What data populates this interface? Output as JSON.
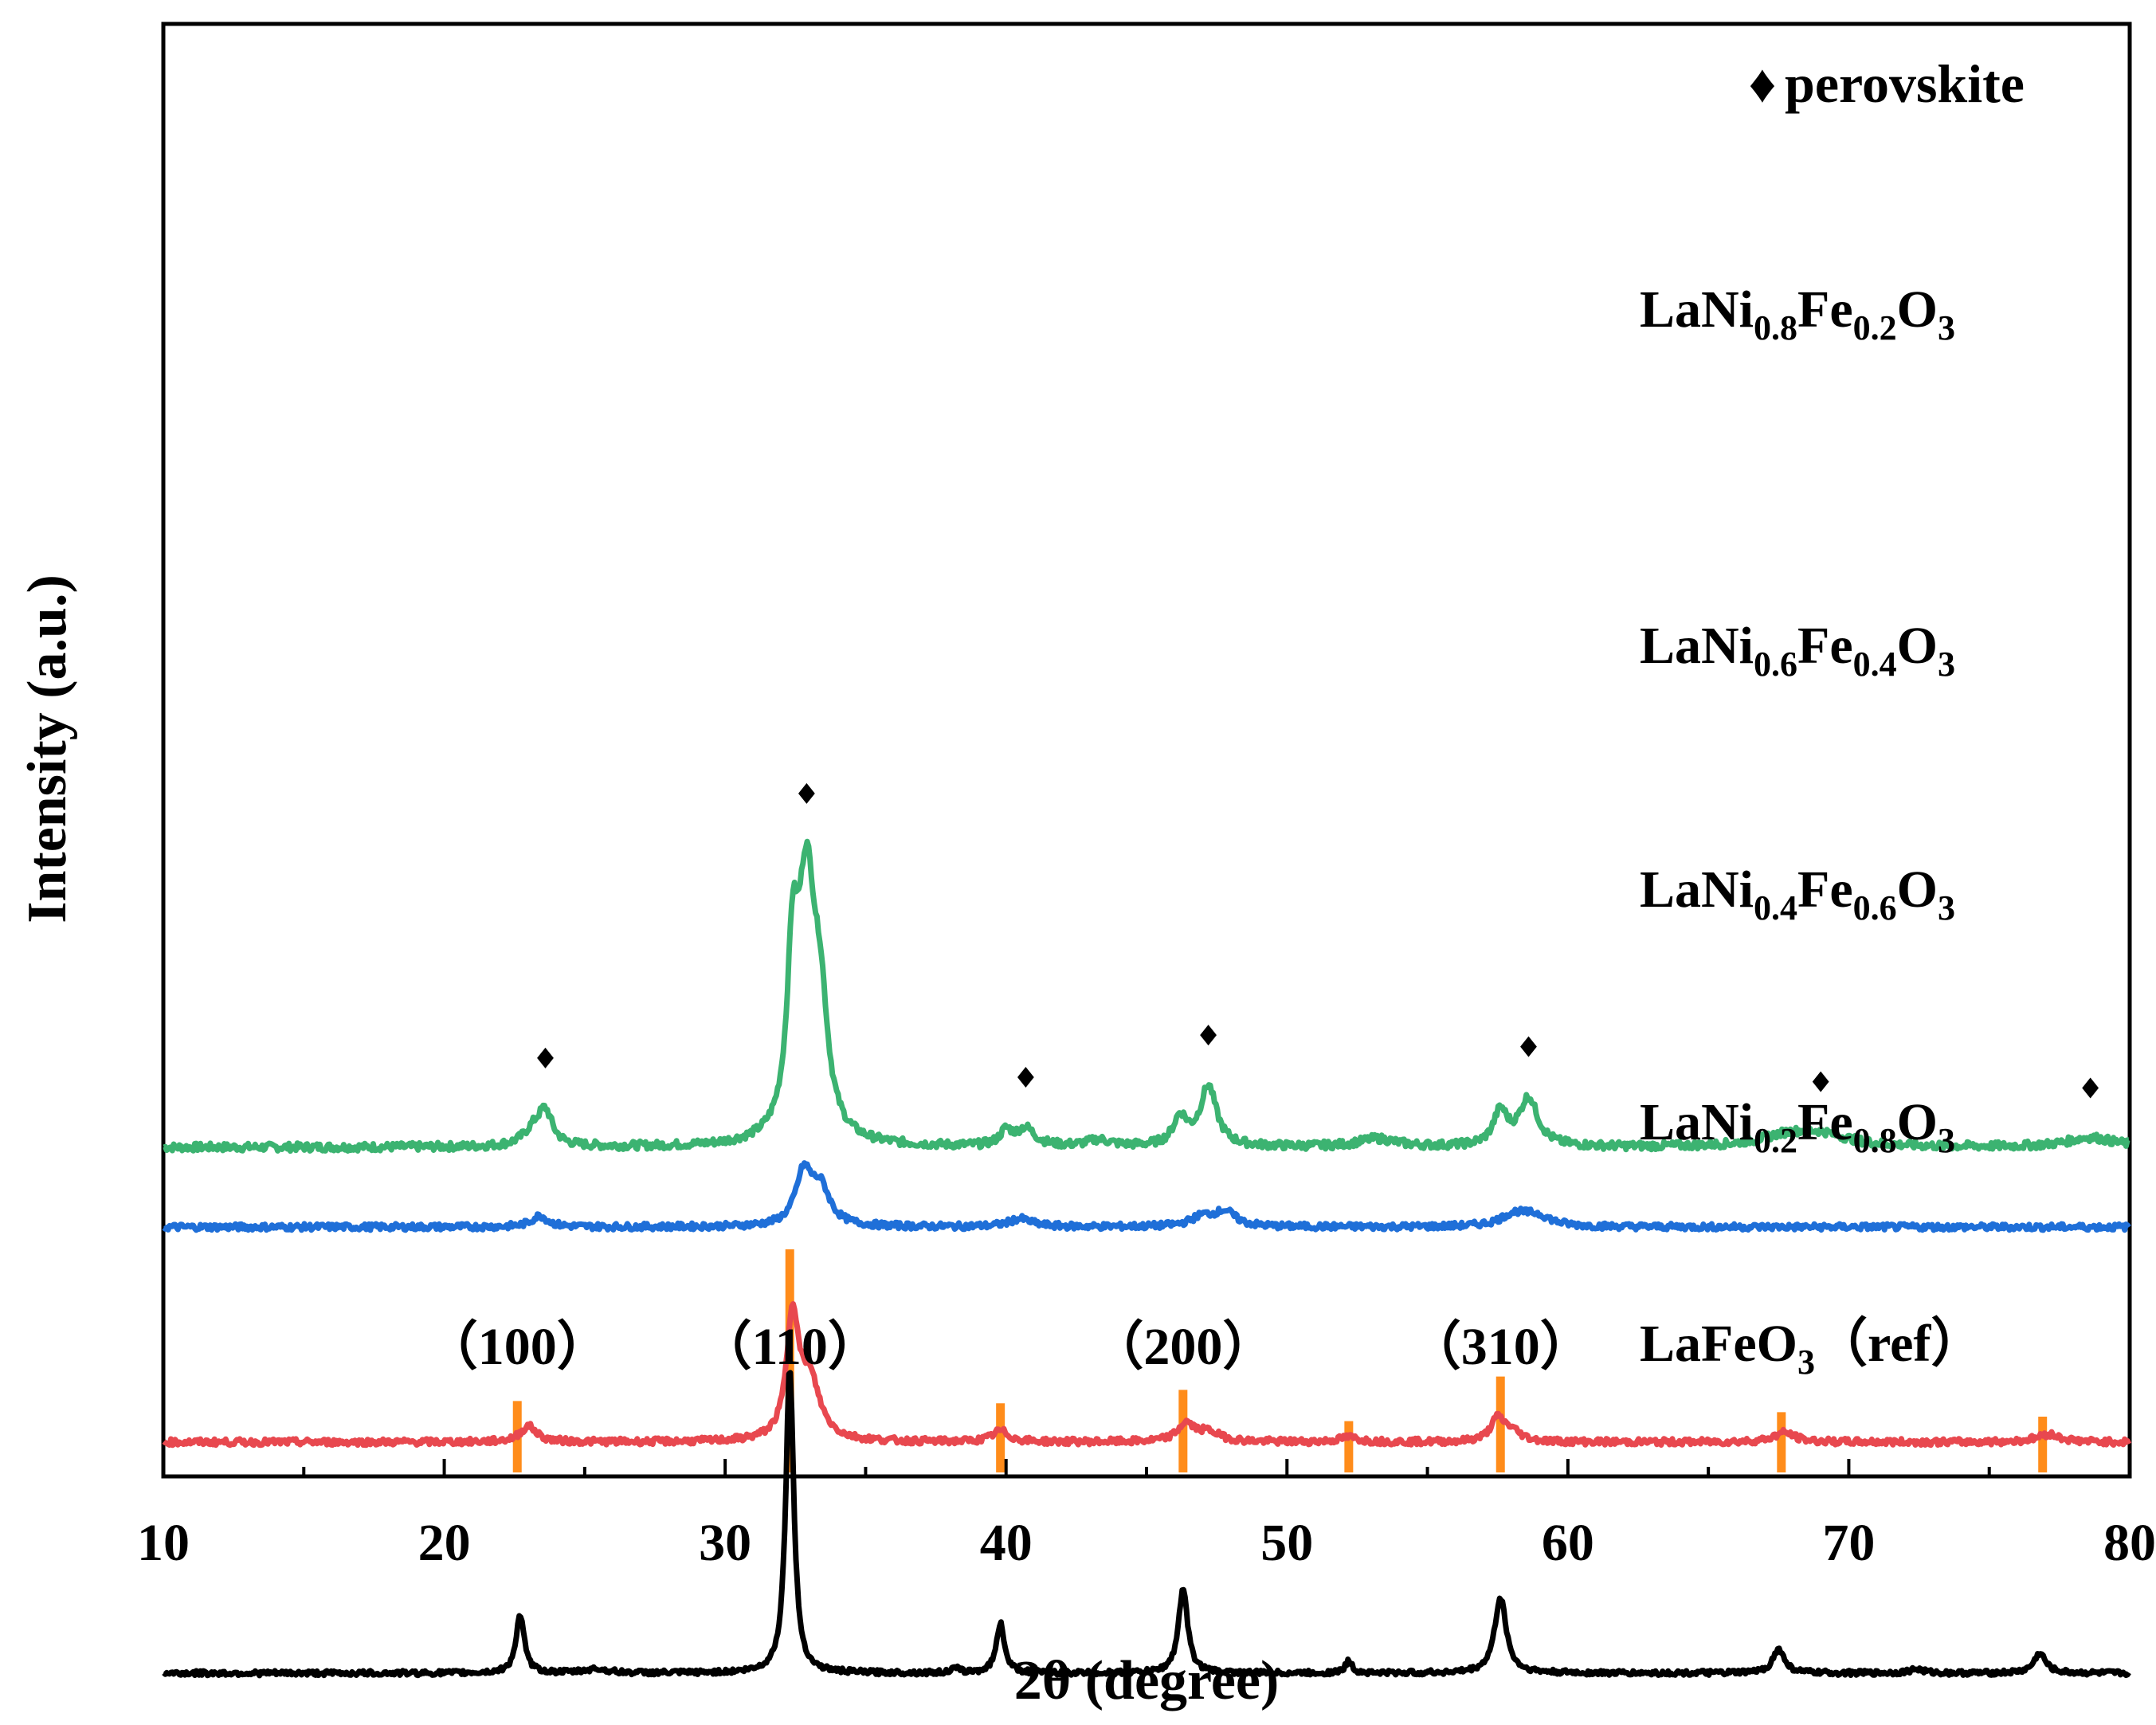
{
  "chart_data": {
    "type": "line",
    "xlabel": "2θ (degree)",
    "ylabel": "Intensity (a.u.)",
    "xlim": [
      10,
      80
    ],
    "xticks": [
      10,
      20,
      30,
      40,
      50,
      60,
      70,
      80
    ],
    "legend": {
      "marker": "♦",
      "label": "perovskite",
      "position": "top-right"
    },
    "series": [
      {
        "name": "LaNi0.8Fe0.2O3",
        "label_parts": [
          "LaNi",
          "0.8",
          "Fe",
          "0.2",
          "O",
          "3"
        ],
        "color": "#3cb371",
        "baseline": 100,
        "peaks": [
          [
            23.2,
            20,
            0.45
          ],
          [
            23.6,
            38,
            0.3
          ],
          [
            32.4,
            185,
            0.22
          ],
          [
            32.9,
            320,
            0.4
          ],
          [
            33.4,
            120,
            0.3
          ],
          [
            40.0,
            18,
            0.25
          ],
          [
            40.7,
            22,
            0.4
          ],
          [
            43.3,
            8,
            0.5
          ],
          [
            46.2,
            35,
            0.3
          ],
          [
            47.2,
            75,
            0.35
          ],
          [
            53.2,
            10,
            0.8
          ],
          [
            57.6,
            42,
            0.3
          ],
          [
            58.6,
            60,
            0.4
          ],
          [
            67.8,
            12,
            1.2
          ],
          [
            69.0,
            14,
            1.2
          ],
          [
            78.6,
            12,
            1.0
          ]
        ],
        "noise": 5
      },
      {
        "name": "LaNi0.6Fe0.4O3",
        "label_parts": [
          "LaNi",
          "0.6",
          "Fe",
          "0.4",
          "O",
          "3"
        ],
        "color": "#1f6fd8",
        "baseline": 0,
        "peaks": [
          [
            23.4,
            14,
            0.35
          ],
          [
            32.8,
            65,
            0.35
          ],
          [
            33.4,
            45,
            0.4
          ],
          [
            40.5,
            10,
            0.5
          ],
          [
            47.0,
            12,
            0.5
          ],
          [
            47.8,
            18,
            0.45
          ],
          [
            58.1,
            15,
            0.6
          ],
          [
            58.9,
            12,
            0.6
          ]
        ],
        "noise": 4
      },
      {
        "name": "LaNi0.4Fe0.6O3",
        "label_parts": [
          "LaNi",
          "0.4",
          "Fe",
          "0.6",
          "O",
          "3"
        ],
        "color": "#e8484f",
        "baseline": -270,
        "peaks": [
          [
            23.0,
            20,
            0.35
          ],
          [
            32.4,
            150,
            0.25
          ],
          [
            33.0,
            75,
            0.45
          ],
          [
            39.8,
            14,
            0.35
          ],
          [
            46.4,
            22,
            0.35
          ],
          [
            47.2,
            12,
            0.5
          ],
          [
            52.2,
            6,
            0.4
          ],
          [
            57.5,
            28,
            0.3
          ],
          [
            58.0,
            12,
            0.4
          ],
          [
            67.7,
            12,
            0.45
          ],
          [
            77.1,
            10,
            0.5
          ]
        ],
        "noise": 4
      },
      {
        "name": "LaNi0.2Fe0.8O3",
        "label_parts": [
          "LaNi",
          "0.2",
          "Fe",
          "0.8",
          "O",
          "3"
        ],
        "color": "#000000",
        "baseline": -560,
        "peaks": [
          [
            22.7,
            72,
            0.18
          ],
          [
            25.4,
            5,
            0.5
          ],
          [
            32.3,
            385,
            0.17
          ],
          [
            39.8,
            62,
            0.18
          ],
          [
            38.2,
            5,
            0.2
          ],
          [
            46.3,
            105,
            0.2
          ],
          [
            52.2,
            15,
            0.15
          ],
          [
            57.6,
            95,
            0.25
          ],
          [
            67.5,
            30,
            0.25
          ],
          [
            72.4,
            5,
            0.3
          ],
          [
            76.8,
            25,
            0.25
          ]
        ],
        "noise": 3
      }
    ],
    "reference": {
      "name": "LaFeO3 (ref)",
      "label_parts": [
        "LaFeO",
        "3",
        "（ref）"
      ],
      "color": "#ff8c1a",
      "lines": [
        {
          "x": 22.6,
          "intensity": 0.32
        },
        {
          "x": 32.3,
          "intensity": 1.0
        },
        {
          "x": 39.8,
          "intensity": 0.31
        },
        {
          "x": 46.3,
          "intensity": 0.37
        },
        {
          "x": 52.2,
          "intensity": 0.23
        },
        {
          "x": 57.6,
          "intensity": 0.43
        },
        {
          "x": 67.6,
          "intensity": 0.27
        },
        {
          "x": 76.9,
          "intensity": 0.25
        }
      ],
      "miller_labels": [
        {
          "x": 22.6,
          "text": "（100）"
        },
        {
          "x": 32.3,
          "text": "（110）"
        },
        {
          "x": 46.3,
          "text": "（200）"
        },
        {
          "x": 57.6,
          "text": "（310）"
        }
      ]
    },
    "perovskite_markers": [
      23.6,
      32.9,
      40.7,
      47.2,
      58.6,
      69.0,
      78.6
    ]
  }
}
